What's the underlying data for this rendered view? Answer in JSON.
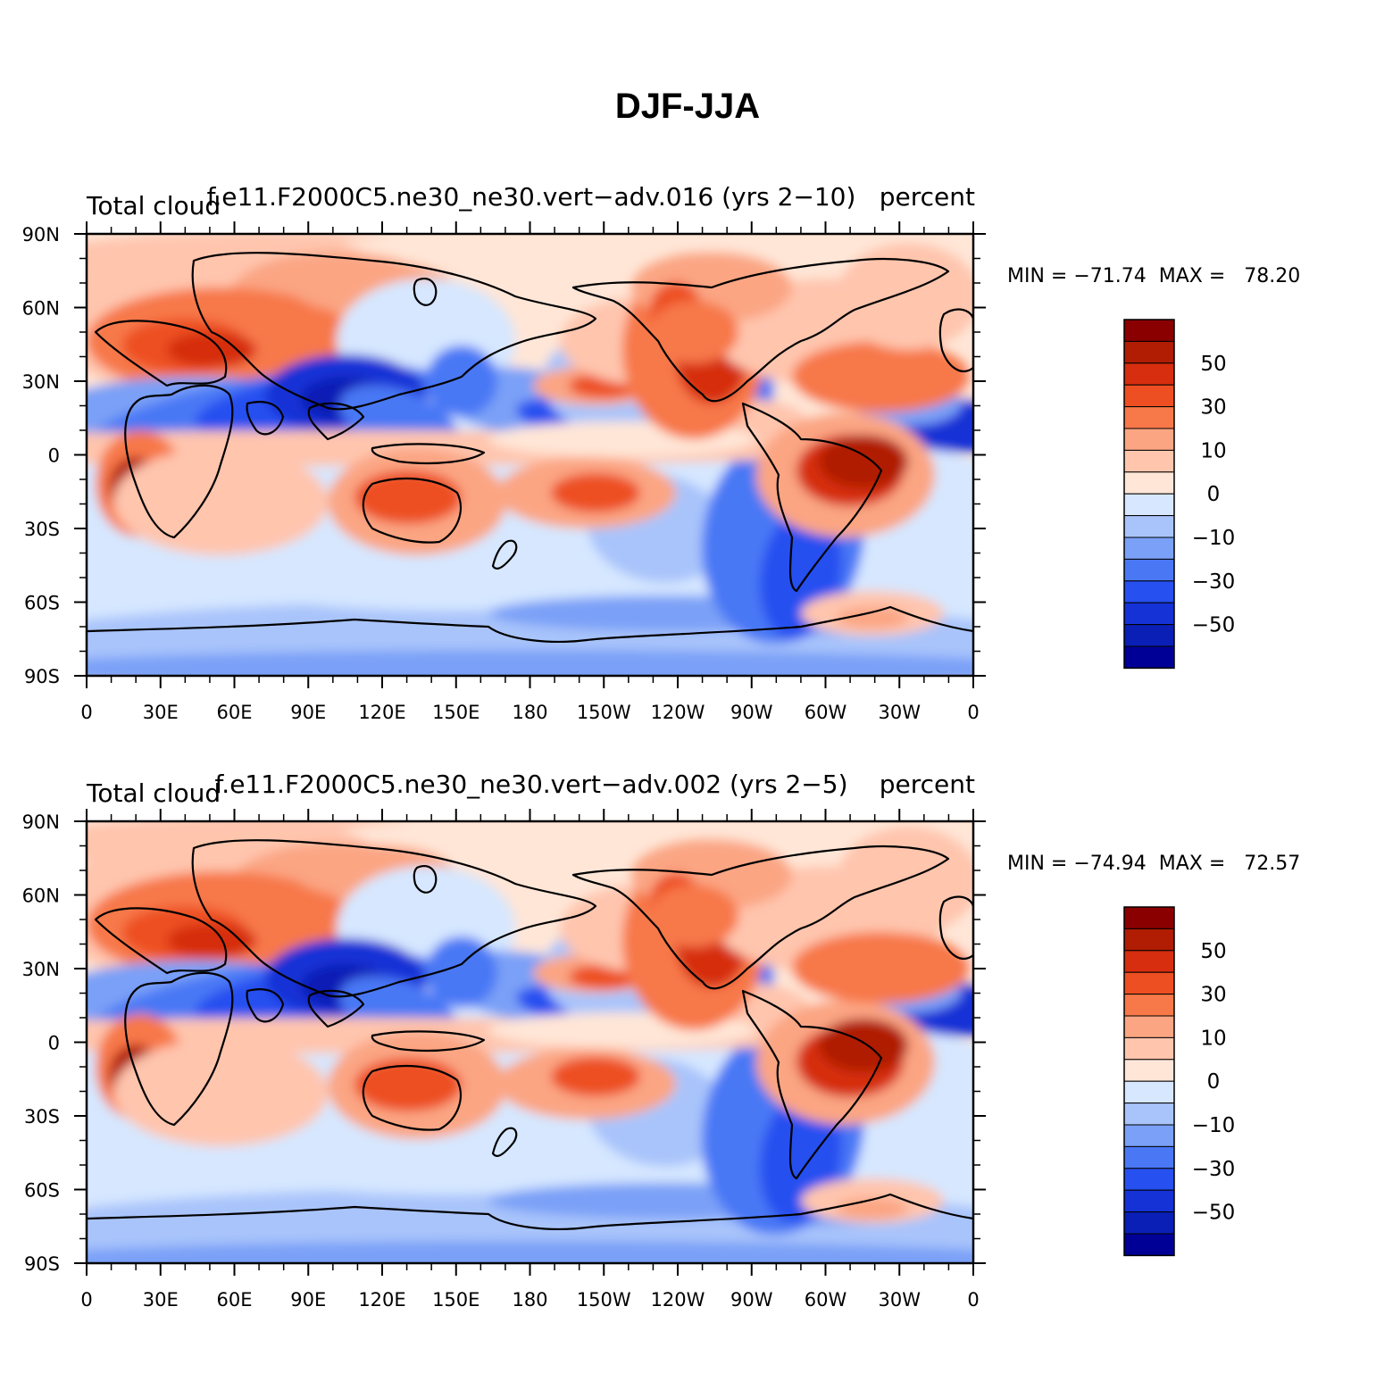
{
  "title": "DJF-JJA",
  "xtick_labels": [
    "0",
    "30E",
    "60E",
    "90E",
    "120E",
    "150E",
    "180",
    "150W",
    "120W",
    "90W",
    "60W",
    "30W",
    "0"
  ],
  "ytick_labels": [
    "90N",
    "60N",
    "30N",
    "0",
    "30S",
    "60S",
    "90S"
  ],
  "colorbar": {
    "colors": [
      "#000096",
      "#0a1fb5",
      "#1432d6",
      "#2650f0",
      "#4a78f5",
      "#7aa0f7",
      "#a9c4fb",
      "#d6e7ff",
      "#ffe6d7",
      "#ffc5ad",
      "#fba583",
      "#f77848",
      "#ed4f22",
      "#d62e0e",
      "#b01d03",
      "#8a0000"
    ],
    "labels": [
      "50",
      "30",
      "10",
      "0",
      "−10",
      "−30",
      "−50"
    ]
  },
  "panels": [
    {
      "case_title": "f.e11.F2000C5.ne30_ne30.vert−adv.016 (yrs 2−10)",
      "left_label": "Total cloud",
      "right_label": "percent",
      "stats": "MIN = −71.74  MAX =   78.20",
      "min": -71.74,
      "max": 78.2
    },
    {
      "case_title": "f.e11.F2000C5.ne30_ne30.vert−adv.002 (yrs 2−5)",
      "left_label": "Total cloud",
      "right_label": "percent",
      "stats": "MIN = −74.94  MAX =   72.57",
      "min": -74.94,
      "max": 72.57
    }
  ]
}
